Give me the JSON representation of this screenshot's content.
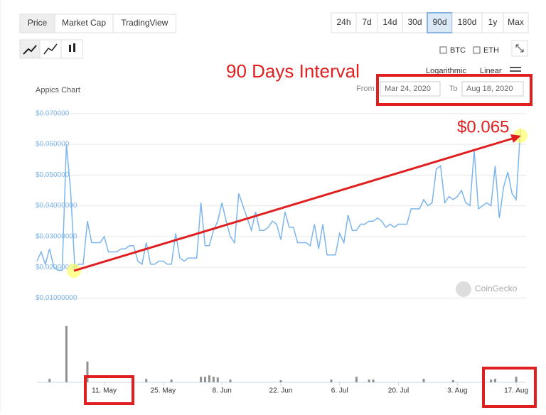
{
  "tabs": [
    "Price",
    "Market Cap",
    "TradingView"
  ],
  "intervals": [
    "24h",
    "7d",
    "14d",
    "30d",
    "90d",
    "180d",
    "1y",
    "Max"
  ],
  "active_interval": 4,
  "compare": [
    "BTC",
    "ETH"
  ],
  "scale_options": [
    "Logarithmic",
    "Linear"
  ],
  "date_range": {
    "from_label": "From",
    "from": "Mar 24, 2020",
    "to_label": "To",
    "to": "Aug 18, 2020"
  },
  "annotations": {
    "interval": "90 Days Interval",
    "price": "$0.065"
  },
  "watermark": "CoinGecko",
  "chart_data": {
    "type": "line",
    "title": "Appics Chart",
    "color": "#7cb5ec",
    "grid": true,
    "categories": [
      null,
      null,
      null,
      null,
      null,
      null,
      null,
      null,
      null,
      null,
      null,
      null,
      null,
      null,
      null,
      null,
      "11. May",
      null,
      null,
      null,
      null,
      null,
      null,
      null,
      null,
      null,
      null,
      null,
      null,
      null,
      "25. May",
      null,
      null,
      null,
      null,
      null,
      null,
      null,
      null,
      null,
      null,
      null,
      null,
      null,
      "8. Jun",
      null,
      null,
      null,
      null,
      null,
      null,
      null,
      null,
      null,
      null,
      null,
      null,
      null,
      "22. Jun",
      null,
      null,
      null,
      null,
      null,
      null,
      null,
      null,
      null,
      null,
      null,
      null,
      null,
      "6. Jul",
      null,
      null,
      null,
      null,
      null,
      null,
      null,
      null,
      null,
      null,
      null,
      null,
      null,
      "20. Jul",
      null,
      null,
      null,
      null,
      null,
      null,
      null,
      null,
      null,
      null,
      null,
      null,
      null,
      "3. Aug",
      null,
      null,
      null,
      null,
      null,
      null,
      null,
      null,
      null,
      null,
      null,
      null,
      null,
      "17. Aug",
      null
    ],
    "values": [
      0.022,
      0.025,
      0.021,
      0.026,
      0.02,
      0.019,
      0.019,
      0.06,
      0.045,
      0.02,
      0.021,
      0.021,
      0.035,
      0.028,
      0.028,
      0.028,
      0.03,
      0.025,
      0.025,
      0.025,
      0.026,
      0.026,
      0.027,
      0.027,
      0.022,
      0.021,
      0.028,
      0.021,
      0.021,
      0.022,
      0.022,
      0.021,
      0.021,
      0.031,
      0.023,
      0.022,
      0.023,
      0.023,
      0.023,
      0.041,
      0.027,
      0.027,
      0.032,
      0.035,
      0.041,
      0.035,
      0.03,
      0.028,
      0.044,
      0.04,
      0.036,
      0.032,
      0.038,
      0.032,
      0.032,
      0.033,
      0.035,
      0.034,
      0.029,
      0.038,
      0.033,
      0.033,
      0.028,
      0.028,
      0.028,
      0.027,
      0.034,
      0.026,
      0.034,
      0.024,
      0.024,
      0.024,
      0.031,
      0.028,
      0.037,
      0.032,
      0.032,
      0.034,
      0.034,
      0.035,
      0.035,
      0.036,
      0.035,
      0.033,
      0.034,
      0.033,
      0.034,
      0.034,
      0.034,
      0.039,
      0.039,
      0.039,
      0.042,
      0.04,
      0.041,
      0.052,
      0.053,
      0.041,
      0.043,
      0.042,
      0.043,
      0.045,
      0.041,
      0.04,
      0.058,
      0.039,
      0.04,
      0.041,
      0.04,
      0.053,
      0.036,
      0.046,
      0.051,
      0.044,
      0.042,
      0.065
    ],
    "ylim": [
      0.005,
      0.0725
    ],
    "yticks": [
      {
        "value": 0.01,
        "label": "$0.01000000"
      },
      {
        "value": 0.02,
        "label": "$0.02000000"
      },
      {
        "value": 0.03,
        "label": "$0.03000000"
      },
      {
        "value": 0.04,
        "label": "$0.04000000"
      },
      {
        "value": 0.05,
        "label": "$0.050000"
      },
      {
        "value": 0.06,
        "label": "$0.060000"
      },
      {
        "value": 0.07,
        "label": "$0.070000"
      }
    ],
    "volume": {
      "type": "bar",
      "color": "#909090",
      "ylim": [
        0,
        90
      ],
      "values": [
        0,
        0,
        0,
        5,
        0,
        0,
        0,
        81,
        0,
        0,
        0,
        0,
        30,
        0,
        0,
        0,
        0,
        0,
        0,
        0,
        0,
        0,
        0,
        0,
        0,
        0,
        5,
        0,
        0,
        0,
        0,
        0,
        4,
        0,
        0,
        0,
        0,
        0,
        0,
        8,
        8,
        10,
        8,
        7,
        0,
        0,
        4,
        0,
        0,
        0,
        0,
        0,
        0,
        0,
        0,
        0,
        0,
        0,
        3,
        0,
        0,
        0,
        0,
        0,
        0,
        0,
        0,
        0,
        0,
        0,
        4,
        0,
        0,
        0,
        0,
        0,
        8,
        0,
        0,
        4,
        4,
        0,
        0,
        0,
        0,
        0,
        0,
        0,
        0,
        0,
        0,
        0,
        5,
        0,
        0,
        0,
        0,
        0,
        0,
        3,
        0,
        0,
        0,
        0,
        0,
        0,
        0,
        0,
        4,
        5,
        0,
        0,
        0,
        0,
        8,
        0
      ]
    }
  }
}
